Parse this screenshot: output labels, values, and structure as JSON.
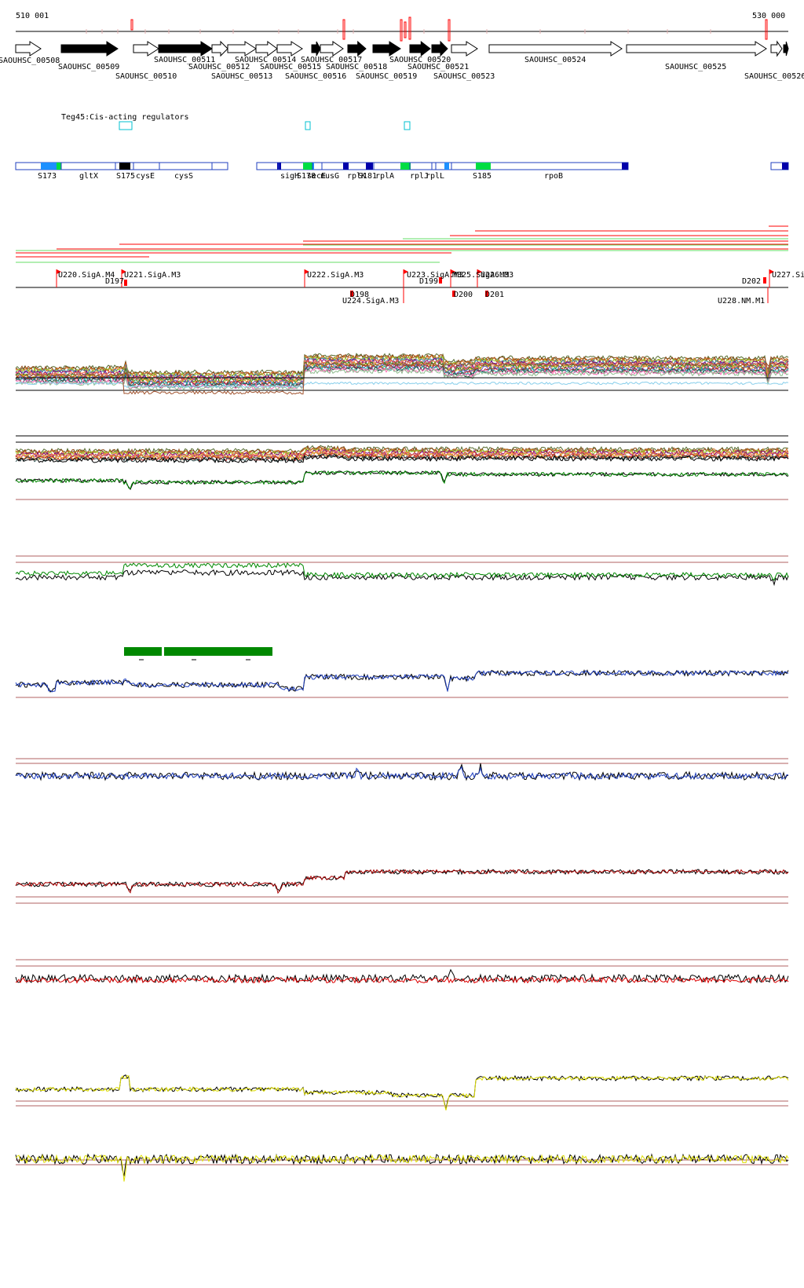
{
  "coords": {
    "start": "510 001",
    "end": "530 000"
  },
  "colors": {
    "red": "#ff0000",
    "darkred": "#aa3333",
    "blue": "#1f3fbf",
    "navy": "#0000aa",
    "cyan": "#00c0d0",
    "green": "#009900",
    "lightgreen": "#66dd66",
    "yellow": "#dddd00",
    "black": "#000000",
    "brown": "#b06060"
  },
  "genes": {
    "top_labels": [
      "SAOUHSC_00508",
      "SAOUHSC_00509",
      "SAOUHSC_00511",
      "SAOUHSC_00514",
      "SAOUHSC_00517",
      "SAOUHSC_00520",
      "SAOUHSC_00524",
      "SAOUHSC_00512",
      "SAOUHSC_00515",
      "SAOUHSC_00518",
      "SAOUHSC_00521",
      "SAOUHSC_00525"
    ],
    "bottom_labels": [
      "SAOUHSC_00510",
      "SAOUHSC_00513",
      "SAOUHSC_00516",
      "SAOUHSC_00519",
      "SAOUHSC_00523",
      "SAOUHSC_00526"
    ]
  },
  "regulators": {
    "label": "Teg45:Cis-acting regulators"
  },
  "operons": {
    "labels": [
      "S173",
      "gltX",
      "S175",
      "cysE",
      "cysS",
      "sigH",
      "S178",
      "secE",
      "nusG",
      "rplK",
      "S181",
      "rplA",
      "rplJ",
      "rplL",
      "S185",
      "rpoB"
    ]
  },
  "promoters": {
    "up_labels": [
      "U220.SigA.M4",
      "U221.SigA.M3",
      "U222.SigA.M3",
      "U223.SigA.M3",
      "M325.SigA.M3",
      "U226.M3",
      "U227.Si"
    ],
    "down_labels": [
      "D197",
      "D198",
      "U224.SigA.M3",
      "D199",
      "D200",
      "D201",
      "D202",
      "U228.NM.M1"
    ]
  }
}
